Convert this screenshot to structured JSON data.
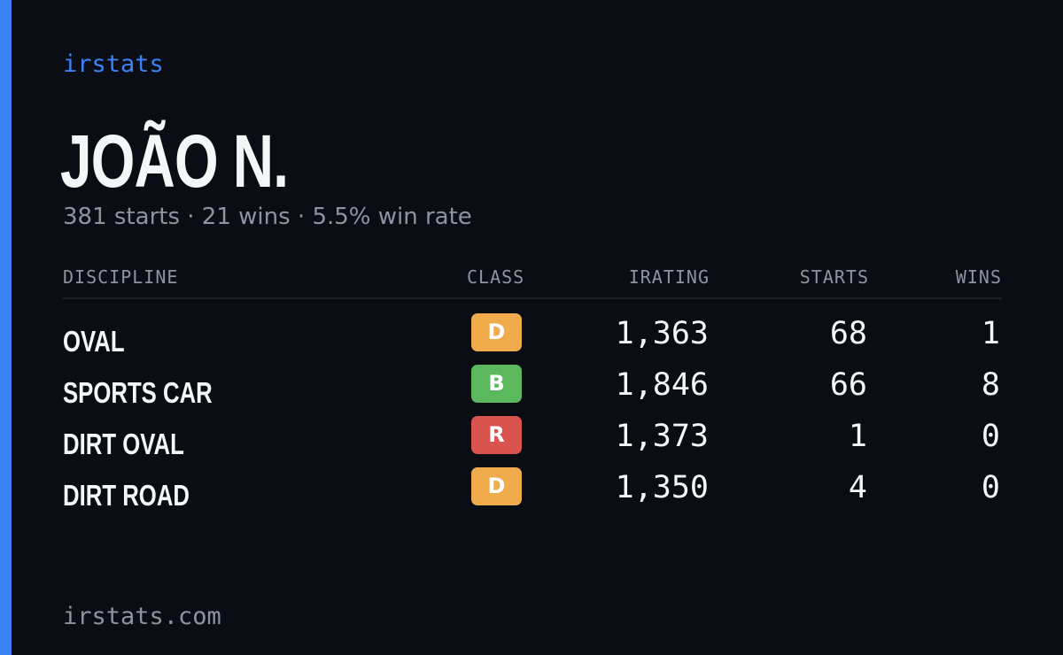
{
  "brand": "irstats",
  "driver": {
    "name": "JOÃO N.",
    "summary": "381 starts · 21 wins · 5.5% win rate"
  },
  "table": {
    "headers": {
      "discipline": "DISCIPLINE",
      "class": "CLASS",
      "irating": "IRATING",
      "starts": "STARTS",
      "wins": "WINS"
    },
    "rows": [
      {
        "discipline": "OVAL",
        "class": "D",
        "class_color": "#f0ac4c",
        "irating": "1,363",
        "starts": "68",
        "wins": "1"
      },
      {
        "discipline": "SPORTS CAR",
        "class": "B",
        "class_color": "#5cb85c",
        "irating": "1,846",
        "starts": "66",
        "wins": "8"
      },
      {
        "discipline": "DIRT OVAL",
        "class": "R",
        "class_color": "#d9534f",
        "irating": "1,373",
        "starts": "1",
        "wins": "0"
      },
      {
        "discipline": "DIRT ROAD",
        "class": "D",
        "class_color": "#f0ac4c",
        "irating": "1,350",
        "starts": "4",
        "wins": "0"
      }
    ]
  },
  "footer": {
    "url": "irstats.com"
  },
  "colors": {
    "background": "#0a0d14",
    "accent": "#3b82f6",
    "text": "#f5f6f8",
    "muted": "#8c94a3"
  }
}
